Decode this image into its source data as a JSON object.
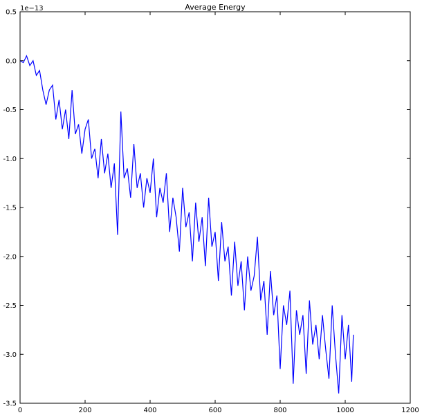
{
  "chart_data": {
    "type": "line",
    "title": "Average Energy",
    "y_offset_label": "1e−13",
    "x": [
      0,
      10,
      20,
      30,
      40,
      50,
      60,
      70,
      80,
      90,
      100,
      110,
      120,
      130,
      140,
      150,
      160,
      170,
      180,
      190,
      200,
      210,
      220,
      230,
      240,
      250,
      260,
      270,
      280,
      290,
      300,
      310,
      320,
      330,
      340,
      350,
      360,
      370,
      380,
      390,
      400,
      410,
      420,
      430,
      440,
      450,
      460,
      470,
      480,
      490,
      500,
      510,
      520,
      530,
      540,
      550,
      560,
      570,
      580,
      590,
      600,
      610,
      620,
      630,
      640,
      650,
      660,
      670,
      680,
      690,
      700,
      710,
      720,
      730,
      740,
      750,
      760,
      770,
      780,
      790,
      800,
      810,
      820,
      830,
      840,
      850,
      860,
      870,
      880,
      890,
      900,
      910,
      920,
      930,
      940,
      950,
      960,
      970,
      980,
      990,
      1000,
      1010,
      1020,
      1025
    ],
    "series": [
      {
        "name": "Average Energy",
        "color": "#0000ff",
        "values": [
          0.0,
          -0.02,
          0.05,
          -0.05,
          0.0,
          -0.15,
          -0.1,
          -0.3,
          -0.45,
          -0.3,
          -0.25,
          -0.6,
          -0.4,
          -0.7,
          -0.5,
          -0.8,
          -0.3,
          -0.75,
          -0.65,
          -0.95,
          -0.7,
          -0.6,
          -1.0,
          -0.9,
          -1.2,
          -0.8,
          -1.15,
          -0.95,
          -1.3,
          -1.05,
          -1.78,
          -0.52,
          -1.2,
          -1.1,
          -1.4,
          -0.85,
          -1.3,
          -1.15,
          -1.5,
          -1.2,
          -1.35,
          -1.0,
          -1.6,
          -1.3,
          -1.45,
          -1.15,
          -1.75,
          -1.4,
          -1.6,
          -1.95,
          -1.3,
          -1.7,
          -1.55,
          -2.05,
          -1.45,
          -1.85,
          -1.6,
          -2.1,
          -1.4,
          -1.9,
          -1.75,
          -2.25,
          -1.65,
          -2.05,
          -1.9,
          -2.4,
          -1.85,
          -2.3,
          -2.05,
          -2.55,
          -2.0,
          -2.35,
          -2.2,
          -1.8,
          -2.45,
          -2.25,
          -2.8,
          -2.15,
          -2.6,
          -2.4,
          -3.15,
          -2.5,
          -2.7,
          -2.35,
          -3.3,
          -2.55,
          -2.8,
          -2.6,
          -3.2,
          -2.45,
          -2.9,
          -2.7,
          -3.05,
          -2.6,
          -2.95,
          -3.25,
          -2.5,
          -3.0,
          -3.4,
          -2.6,
          -3.05,
          -2.7,
          -3.28,
          -2.8
        ]
      }
    ],
    "xlim": [
      0,
      1200
    ],
    "xticks": [
      0,
      200,
      400,
      600,
      800,
      1000,
      1200
    ],
    "ylim": [
      -3.5,
      0.5
    ],
    "yticks": [
      0.5,
      {
        "value": 0,
        "label": "0.0"
      },
      -0.5,
      {
        "value": -1,
        "label": "-1.0"
      },
      -1.5,
      {
        "value": -2,
        "label": "-2.0"
      },
      -2.5,
      {
        "value": -3,
        "label": "-3.0"
      },
      -3.5
    ]
  }
}
